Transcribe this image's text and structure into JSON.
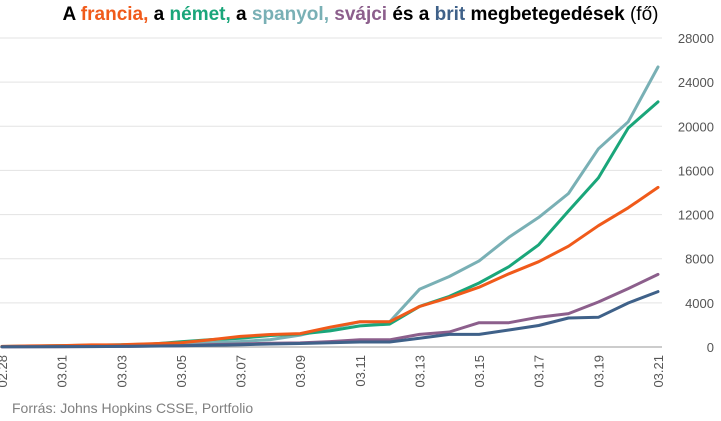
{
  "title": {
    "p1": "A ",
    "france": "francia,",
    "p2": " a ",
    "germany": "német,",
    "p3": " a ",
    "spain": "spanyol,",
    "p4": " ",
    "switzerland": "svájci",
    "p5": " és a ",
    "uk": "brit",
    "p6": " megbetegedések ",
    "p7": "(fő)"
  },
  "source": "Forrás: Johns Hopkins CSSE, Portfolio",
  "chart_data": {
    "type": "line",
    "x": [
      "02.28",
      "02.29",
      "03.01",
      "03.02",
      "03.03",
      "03.04",
      "03.05",
      "03.06",
      "03.07",
      "03.08",
      "03.09",
      "03.10",
      "03.11",
      "03.12",
      "03.13",
      "03.14",
      "03.15",
      "03.16",
      "03.17",
      "03.18",
      "03.19",
      "03.20",
      "03.21"
    ],
    "x_tick_labels": [
      "02.28",
      "03.01",
      "03.03",
      "03.05",
      "03.07",
      "03.09",
      "03.11",
      "03.13",
      "03.15",
      "03.17",
      "03.19",
      "03.21"
    ],
    "ylim": [
      0,
      28000
    ],
    "y_ticks": [
      0,
      4000,
      8000,
      12000,
      16000,
      20000,
      24000,
      28000
    ],
    "y_tick_labels": [
      "0",
      "4000",
      "8000",
      "12000",
      "16000",
      "20000",
      "24000",
      "28000"
    ],
    "grid": true,
    "y_axis_position": "right",
    "series": [
      {
        "name": "spanyol",
        "color": "#79b0b5",
        "values": [
          32,
          45,
          84,
          120,
          165,
          222,
          259,
          400,
          500,
          673,
          1073,
          1695,
          2277,
          2277,
          5232,
          6391,
          7798,
          9942,
          11748,
          13910,
          17963,
          20410,
          25374
        ]
      },
      {
        "name": "német",
        "color": "#1aa67a",
        "values": [
          48,
          79,
          130,
          159,
          196,
          262,
          482,
          670,
          799,
          1040,
          1176,
          1457,
          1908,
          2078,
          3675,
          4585,
          5795,
          7272,
          9257,
          12327,
          15320,
          19848,
          22213
        ]
      },
      {
        "name": "francia",
        "color": "#f05a1a",
        "values": [
          57,
          100,
          130,
          191,
          204,
          288,
          380,
          656,
          957,
          1134,
          1217,
          1792,
          2289,
          2284,
          3667,
          4480,
          5423,
          6633,
          7730,
          9134,
          10995,
          12612,
          14459
        ]
      },
      {
        "name": "svájci",
        "color": "#8c5f8c",
        "values": [
          8,
          18,
          27,
          42,
          56,
          90,
          114,
          214,
          268,
          337,
          374,
          491,
          652,
          652,
          1139,
          1359,
          2200,
          2200,
          2700,
          3028,
          4075,
          5294,
          6575
        ]
      },
      {
        "name": "brit",
        "color": "#3f6189",
        "values": [
          20,
          23,
          36,
          40,
          51,
          85,
          115,
          163,
          206,
          273,
          321,
          382,
          456,
          456,
          798,
          1140,
          1140,
          1543,
          1950,
          2626,
          2689,
          3983,
          5018
        ]
      }
    ]
  }
}
